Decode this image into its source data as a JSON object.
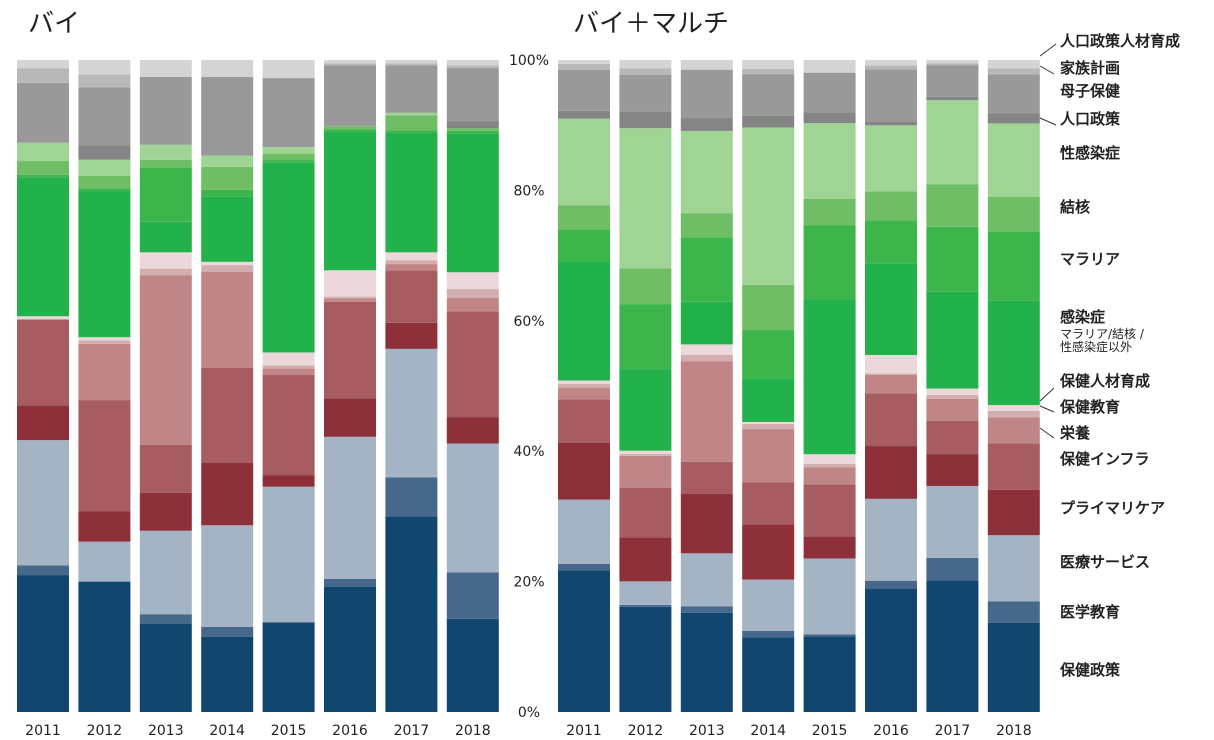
{
  "chart_data": {
    "type": "bar",
    "stacked": true,
    "normalized": true,
    "categories": [
      "2011",
      "2012",
      "2013",
      "2014",
      "2015",
      "2016",
      "2017",
      "2018"
    ],
    "ylim": [
      0,
      100
    ],
    "yticks": [
      "0%",
      "20%",
      "40%",
      "60%",
      "80%",
      "100%"
    ],
    "colors": {
      "保健政策": "#11466e",
      "医学教育": "#46698b",
      "医療サービス": "#a4b4c4",
      "プライマリケア": "#8d3039",
      "保健インフラ": "#a65c61",
      "栄養": "#c08586",
      "保健教育": "#d3aeb0",
      "保健人材育成": "#ecd8da",
      "感染症": "#22b14a",
      "マラリア": "#3cb54b",
      "結核": "#6fbd65",
      "性感染症": "#9fd495",
      "人口政策": "#858585",
      "母子保健": "#999999",
      "家族計画": "#b8b8b8",
      "人口政策人材育成": "#d4d4d4"
    },
    "legend": [
      {
        "name": "人口政策人材育成",
        "note": ""
      },
      {
        "name": "家族計画",
        "note": ""
      },
      {
        "name": "母子保健",
        "note": ""
      },
      {
        "name": "人口政策",
        "note": ""
      },
      {
        "name": "性感染症",
        "note": ""
      },
      {
        "name": "結核",
        "note": ""
      },
      {
        "name": "マラリア",
        "note": ""
      },
      {
        "name": "感染症",
        "note": "マラリア/結核 / 性感染症以外"
      },
      {
        "name": "保健人材育成",
        "note": ""
      },
      {
        "name": "保健教育",
        "note": ""
      },
      {
        "name": "栄養",
        "note": ""
      },
      {
        "name": "保健インフラ",
        "note": ""
      },
      {
        "name": "プライマリケア",
        "note": ""
      },
      {
        "name": "医療サービス",
        "note": ""
      },
      {
        "name": "医学教育",
        "note": ""
      },
      {
        "name": "保健政策",
        "note": ""
      }
    ],
    "panels": [
      {
        "title": "バイ",
        "series": [
          {
            "name": "保健政策",
            "values": [
              21.0,
              19.9,
              13.5,
              11.5,
              13.9,
              19.5,
              30.0,
              14.1
            ]
          },
          {
            "name": "医学教育",
            "values": [
              1.5,
              0.0,
              1.5,
              1.5,
              0.0,
              1.2,
              6.0,
              7.0
            ]
          },
          {
            "name": "医療サービス",
            "values": [
              19.2,
              6.1,
              12.8,
              15.5,
              21.0,
              22.1,
              19.7,
              19.5
            ]
          },
          {
            "name": "プライマリケア",
            "values": [
              5.3,
              4.6,
              5.8,
              9.5,
              1.8,
              6.0,
              4.0,
              4.0
            ]
          },
          {
            "name": "保健インフラ",
            "values": [
              13.2,
              17.0,
              7.4,
              14.5,
              15.5,
              15.0,
              8.0,
              16.0
            ]
          },
          {
            "name": "栄養",
            "values": [
              0.0,
              8.6,
              26.0,
              14.7,
              1.0,
              0.5,
              1.0,
              2.0
            ]
          },
          {
            "name": "保健教育",
            "values": [
              0.0,
              0.5,
              1.0,
              1.0,
              0.5,
              0.3,
              0.6,
              1.4
            ]
          },
          {
            "name": "保健人材育成",
            "values": [
              0.5,
              0.5,
              2.5,
              0.5,
              2.0,
              4.1,
              1.2,
              2.5
            ]
          },
          {
            "name": "感染症",
            "values": [
              21.3,
              22.3,
              4.7,
              10.0,
              29.4,
              21.5,
              18.3,
              21.0
            ]
          },
          {
            "name": "マラリア",
            "values": [
              0.4,
              0.4,
              8.3,
              1.0,
              0.4,
              0.4,
              0.4,
              0.4
            ]
          },
          {
            "name": "結核",
            "values": [
              2.1,
              1.9,
              1.2,
              3.5,
              1.0,
              0.5,
              2.3,
              0.4
            ]
          },
          {
            "name": "性感染症",
            "values": [
              2.8,
              2.5,
              2.3,
              1.7,
              1.0,
              0.0,
              0.4,
              0.0
            ]
          },
          {
            "name": "人口政策",
            "values": [
              0.0,
              2.2,
              0.0,
              0.0,
              0.0,
              0.0,
              0.0,
              1.0
            ]
          },
          {
            "name": "母子保健",
            "values": [
              9.2,
              8.8,
              10.4,
              12.0,
              10.7,
              9.5,
              7.3,
              8.1
            ]
          },
          {
            "name": "家族計画",
            "values": [
              2.2,
              2.0,
              0.0,
              0.0,
              0.0,
              0.3,
              0.3,
              0.4
            ]
          },
          {
            "name": "人口政策人材育成",
            "values": [
              1.3,
              2.2,
              2.6,
              2.6,
              2.8,
              0.5,
              0.5,
              0.8
            ]
          }
        ]
      },
      {
        "title": "バイ＋マルチ",
        "series": [
          {
            "name": "保健政策",
            "values": [
              22.0,
              16.5,
              15.4,
              11.6,
              12.0,
              18.7,
              20.7,
              13.8
            ]
          },
          {
            "name": "医学教育",
            "values": [
              1.0,
              0.3,
              1.0,
              1.0,
              0.3,
              1.2,
              3.5,
              3.3
            ]
          },
          {
            "name": "医療サービス",
            "values": [
              10.0,
              3.7,
              8.2,
              8.0,
              12.0,
              12.4,
              11.3,
              10.2
            ]
          },
          {
            "name": "プライマリケア",
            "values": [
              8.8,
              6.9,
              9.2,
              8.6,
              3.5,
              8.0,
              5.0,
              7.0
            ]
          },
          {
            "name": "保健インフラ",
            "values": [
              6.8,
              7.8,
              5.0,
              6.5,
              8.2,
              8.0,
              5.2,
              7.2
            ]
          },
          {
            "name": "栄養",
            "values": [
              1.8,
              5.0,
              15.6,
              8.3,
              2.7,
              2.8,
              3.5,
              4.0
            ]
          },
          {
            "name": "保健教育",
            "values": [
              0.6,
              0.3,
              1.0,
              0.8,
              0.6,
              0.2,
              0.6,
              1.0
            ]
          },
          {
            "name": "保健人材育成",
            "values": [
              0.5,
              0.5,
              1.6,
              0.3,
              1.5,
              2.8,
              1.0,
              0.9
            ]
          },
          {
            "name": "感染症",
            "values": [
              18.5,
              12.8,
              6.6,
              6.8,
              24.5,
              13.8,
              15.2,
              16.1
            ]
          },
          {
            "name": "マラリア",
            "values": [
              5.0,
              10.2,
              10.0,
              7.5,
              11.7,
              6.6,
              10.2,
              10.7
            ]
          },
          {
            "name": "結核",
            "values": [
              3.7,
              5.6,
              3.7,
              7.0,
              4.2,
              4.4,
              6.7,
              5.4
            ]
          },
          {
            "name": "性感染症",
            "values": [
              13.5,
              22.0,
              12.8,
              24.5,
              12.0,
              10.0,
              13.2,
              11.3
            ]
          },
          {
            "name": "人口政策",
            "values": [
              1.2,
              2.6,
              2.0,
              1.8,
              1.7,
              0.6,
              0.5,
              1.6
            ]
          },
          {
            "name": "母子保健",
            "values": [
              6.4,
              5.8,
              7.5,
              6.5,
              6.3,
              7.9,
              5.0,
              6.0
            ]
          },
          {
            "name": "家族計画",
            "values": [
              0.9,
              1.0,
              0.0,
              0.8,
              0.0,
              0.6,
              0.3,
              0.9
            ]
          },
          {
            "name": "人口政策人材育成",
            "values": [
              0.6,
              1.3,
              1.5,
              1.4,
              2.0,
              0.8,
              0.5,
              1.3
            ]
          }
        ]
      }
    ]
  }
}
